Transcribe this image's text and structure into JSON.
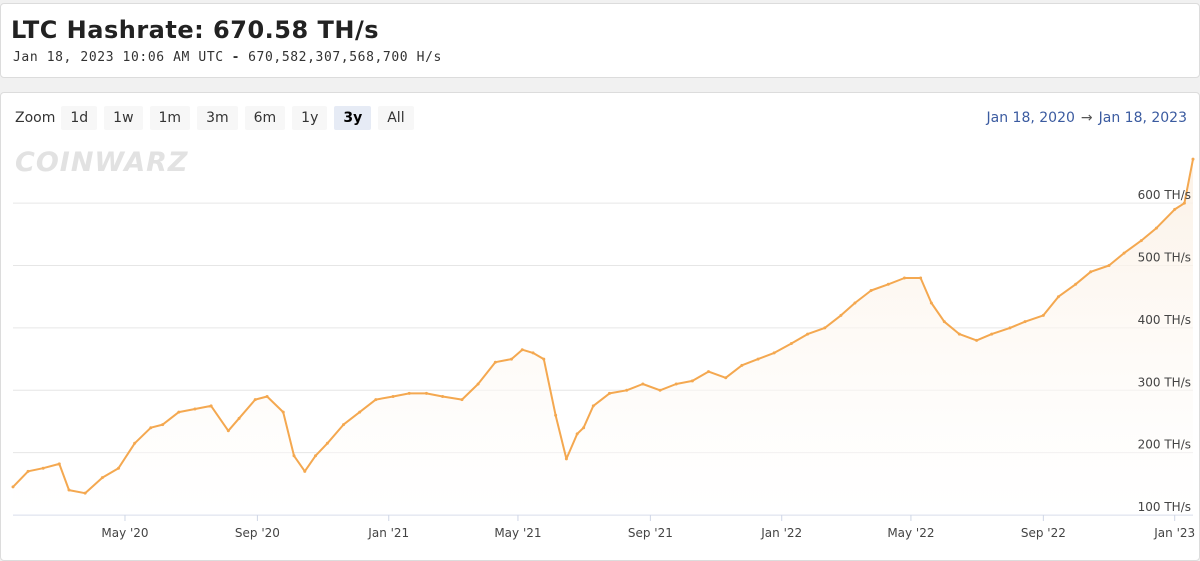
{
  "header": {
    "title": "LTC Hashrate: 670.58 TH/s",
    "timestamp": "Jan 18, 2023 10:06 AM UTC",
    "separator": "-",
    "raw_value": "670,582,307,568,700 H/s"
  },
  "toolbar": {
    "zoom_label": "Zoom",
    "zoom_buttons": [
      "1d",
      "1w",
      "1m",
      "3m",
      "6m",
      "1y",
      "3y",
      "All"
    ],
    "active_zoom": "3y",
    "range_start": "Jan 18, 2020",
    "range_arrow": "→",
    "range_end": "Jan 18, 2023"
  },
  "watermark": "COINWARZ",
  "colors": {
    "line": "#f4a850",
    "area_top": "#fbf0e4",
    "range_text": "#3b5ba0"
  },
  "chart_data": {
    "type": "area",
    "ylim": [
      100,
      650
    ],
    "yunit": "TH/s",
    "yticks": [
      100,
      200,
      300,
      400,
      500,
      600
    ],
    "ytick_labels": [
      "100 TH/s",
      "200 TH/s",
      "300 TH/s",
      "400 TH/s",
      "500 TH/s",
      "600 TH/s"
    ],
    "xlim": [
      "2020-01-18",
      "2023-01-18"
    ],
    "xtick_labels": [
      "May '20",
      "Sep '20",
      "Jan '21",
      "May '21",
      "Sep '21",
      "Jan '22",
      "May '22",
      "Sep '22",
      "Jan '23"
    ],
    "xtick_dates": [
      "2020-05-01",
      "2020-09-01",
      "2021-01-01",
      "2021-05-01",
      "2021-09-01",
      "2022-01-01",
      "2022-05-01",
      "2022-09-01",
      "2023-01-01"
    ],
    "series": [
      {
        "x": [
          "2020-01-18",
          "2020-02-01",
          "2020-02-15",
          "2020-03-01",
          "2020-03-10",
          "2020-03-25",
          "2020-04-10",
          "2020-04-25",
          "2020-05-10",
          "2020-05-25",
          "2020-06-05",
          "2020-06-20",
          "2020-07-05",
          "2020-07-20",
          "2020-08-05",
          "2020-08-15",
          "2020-08-30",
          "2020-09-10",
          "2020-09-25",
          "2020-10-05",
          "2020-10-15",
          "2020-10-25",
          "2020-11-05",
          "2020-11-20",
          "2020-12-05",
          "2020-12-20",
          "2021-01-05",
          "2021-01-20",
          "2021-02-05",
          "2021-02-20",
          "2021-03-10",
          "2021-03-25",
          "2021-04-10",
          "2021-04-25",
          "2021-05-05",
          "2021-05-15",
          "2021-05-25",
          "2021-06-05",
          "2021-06-15",
          "2021-06-25",
          "2021-07-01",
          "2021-07-10",
          "2021-07-25",
          "2021-08-10",
          "2021-08-25",
          "2021-09-10",
          "2021-09-25",
          "2021-10-10",
          "2021-10-25",
          "2021-11-10",
          "2021-11-25",
          "2021-12-10",
          "2021-12-25",
          "2022-01-10",
          "2022-01-25",
          "2022-02-10",
          "2022-02-25",
          "2022-03-10",
          "2022-03-25",
          "2022-04-10",
          "2022-04-25",
          "2022-05-10",
          "2022-05-20",
          "2022-06-01",
          "2022-06-15",
          "2022-07-01",
          "2022-07-15",
          "2022-08-01",
          "2022-08-15",
          "2022-09-01",
          "2022-09-15",
          "2022-10-01",
          "2022-10-15",
          "2022-11-01",
          "2022-11-15",
          "2022-12-01",
          "2022-12-15",
          "2023-01-01",
          "2023-01-10",
          "2023-01-18"
        ],
        "values": [
          145,
          170,
          175,
          182,
          140,
          135,
          160,
          175,
          215,
          240,
          245,
          265,
          270,
          275,
          235,
          255,
          285,
          290,
          265,
          195,
          170,
          195,
          215,
          245,
          265,
          285,
          290,
          295,
          295,
          290,
          285,
          310,
          345,
          350,
          365,
          360,
          350,
          260,
          190,
          230,
          240,
          275,
          295,
          300,
          310,
          300,
          310,
          315,
          330,
          320,
          340,
          350,
          360,
          375,
          390,
          400,
          420,
          440,
          460,
          470,
          480,
          480,
          440,
          410,
          390,
          380,
          390,
          400,
          410,
          420,
          450,
          470,
          490,
          500,
          520,
          540,
          560,
          590,
          600,
          670.58
        ]
      }
    ]
  }
}
